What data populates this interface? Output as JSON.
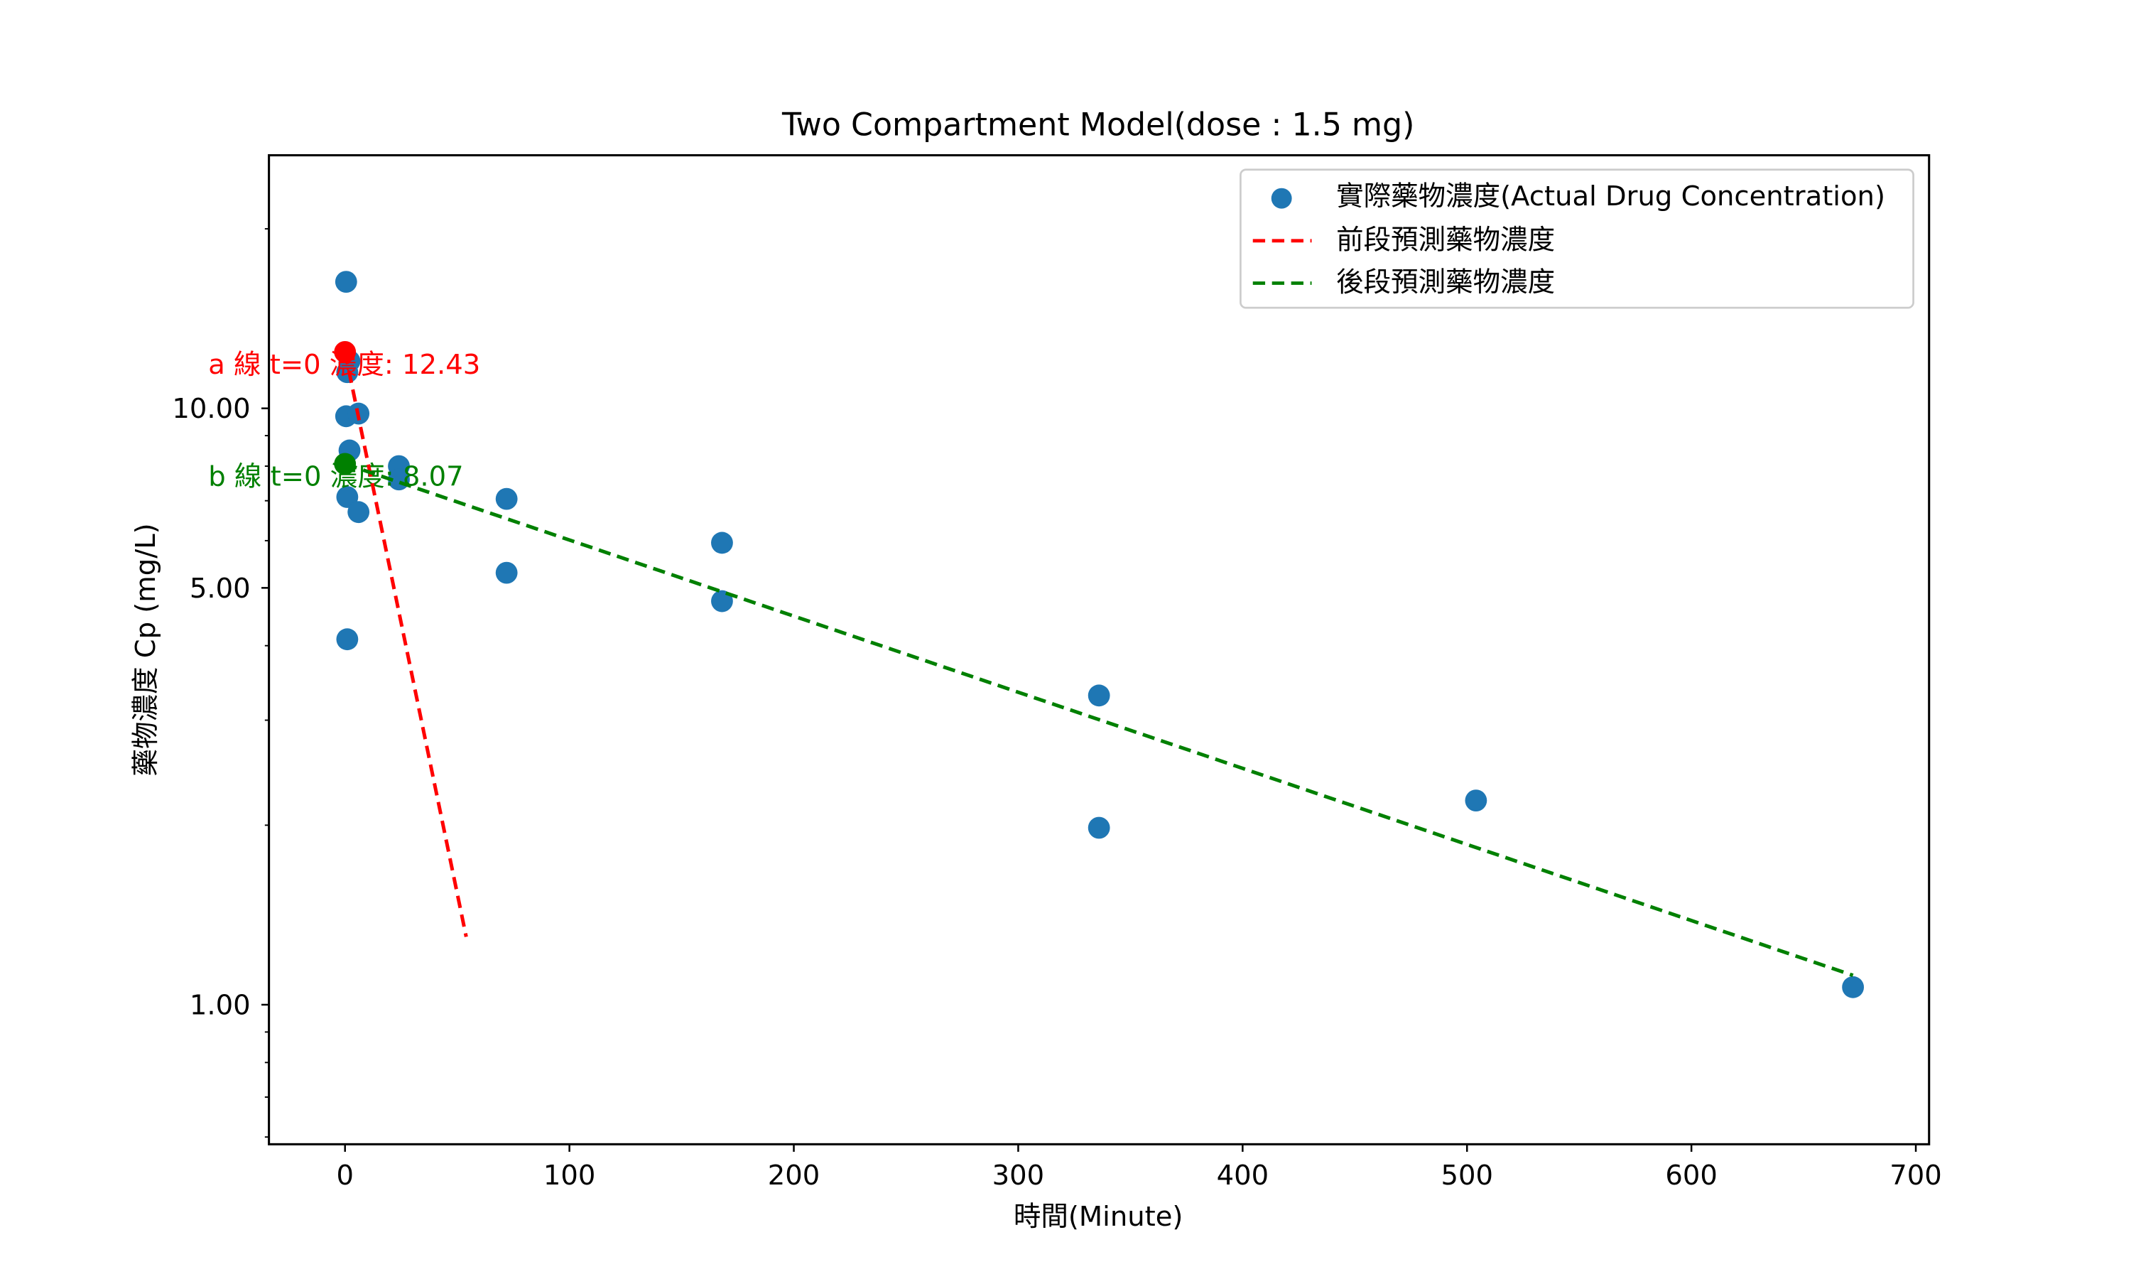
{
  "chart_data": {
    "type": "scatter",
    "title": "Two Compartment Model(dose : 1.5 mg)",
    "xlabel": "時間(Minute)",
    "ylabel": "藥物濃度 Cp (mg/L)",
    "xlim": [
      -33.6,
      705.6
    ],
    "ylim": [
      0.585,
      26.5
    ],
    "yscale": "log",
    "grid": false,
    "legend_position": "top-right",
    "x_ticks": [
      {
        "value": 0,
        "label": "0"
      },
      {
        "value": 100,
        "label": "100"
      },
      {
        "value": 200,
        "label": "200"
      },
      {
        "value": 300,
        "label": "300"
      },
      {
        "value": 400,
        "label": "400"
      },
      {
        "value": 500,
        "label": "500"
      },
      {
        "value": 600,
        "label": "600"
      },
      {
        "value": 700,
        "label": "700"
      }
    ],
    "y_ticks": [
      {
        "value": 1,
        "label": "1.00"
      },
      {
        "value": 5,
        "label": "5.00"
      },
      {
        "value": 10,
        "label": "10.00"
      }
    ],
    "y_minor_ticks": [
      0.6,
      0.7,
      0.8,
      0.9,
      2,
      3,
      4,
      6,
      7,
      8,
      9,
      20
    ],
    "series": [
      {
        "name": "實際藥物濃度(Actual Drug Concentration)",
        "kind": "scatter",
        "color": "#1f77b4",
        "points": [
          {
            "x": 0.5,
            "y": 16.3
          },
          {
            "x": 1,
            "y": 11.5
          },
          {
            "x": 2,
            "y": 12.0
          },
          {
            "x": 0.5,
            "y": 9.7
          },
          {
            "x": 6,
            "y": 9.8
          },
          {
            "x": 2,
            "y": 8.5
          },
          {
            "x": 1,
            "y": 7.1
          },
          {
            "x": 6,
            "y": 6.7
          },
          {
            "x": 1,
            "y": 4.1
          },
          {
            "x": 24,
            "y": 8.0
          },
          {
            "x": 24,
            "y": 7.6
          },
          {
            "x": 72,
            "y": 7.05
          },
          {
            "x": 72,
            "y": 5.3
          },
          {
            "x": 168,
            "y": 5.95
          },
          {
            "x": 168,
            "y": 4.75
          },
          {
            "x": 336,
            "y": 3.3
          },
          {
            "x": 336,
            "y": 1.98
          },
          {
            "x": 504,
            "y": 2.2
          },
          {
            "x": 672,
            "y": 1.07
          }
        ]
      },
      {
        "name": "前段預測藥物濃度",
        "kind": "line",
        "style": "dashed",
        "color": "#ff0000",
        "points": [
          {
            "x": 0,
            "y": 12.43
          },
          {
            "x": 54,
            "y": 1.3
          }
        ]
      },
      {
        "name": "後段預測藥物濃度",
        "kind": "line",
        "style": "dashed",
        "color": "#008000",
        "points": [
          {
            "x": 0,
            "y": 8.07
          },
          {
            "x": 672,
            "y": 1.12
          }
        ]
      }
    ],
    "intercept_markers": [
      {
        "x": 0,
        "y": 12.43,
        "color": "#ff0000"
      },
      {
        "x": 0,
        "y": 8.07,
        "color": "#008000"
      }
    ],
    "annotations": [
      {
        "text": "a 線 t=0 濃度: 12.43",
        "x": 0,
        "y": 12.43,
        "color": "#ff0000"
      },
      {
        "text": "b 線 t=0 濃度: 8.07",
        "x": 0,
        "y": 8.07,
        "color": "#008000"
      }
    ]
  }
}
